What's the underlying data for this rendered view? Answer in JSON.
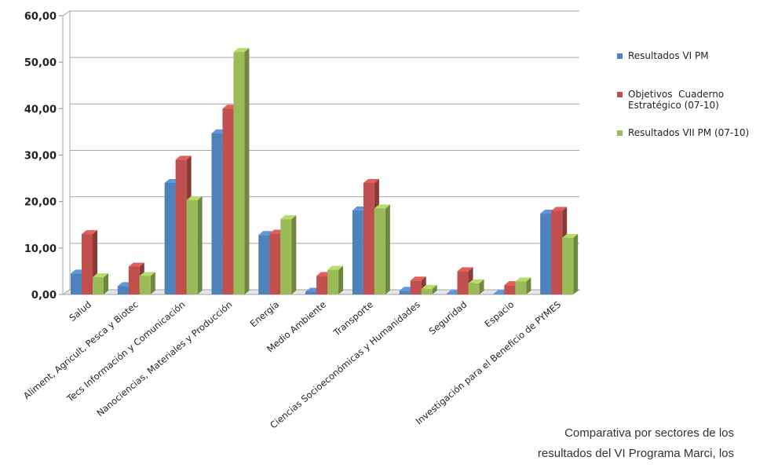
{
  "chart_data": {
    "type": "bar",
    "style": "3d-clustered-column",
    "categories": [
      "Salud",
      "Aliment, Agricult, Pesca y Biotec",
      "Tecs Información y Comunicación",
      "Nanociencias, Materiales y Producción",
      "Energía",
      "Medio Ambiente",
      "Transporte",
      "Ciencias Socioeconómicas y Humanidades",
      "Seguridad",
      "Espacio",
      "Investigación para el Beneficio de PYMES"
    ],
    "series": [
      {
        "name": "Resultados VI PM",
        "color": "#4F81BD",
        "values": [
          4.5,
          1.8,
          24.0,
          34.7,
          12.8,
          0.6,
          18.1,
          0.8,
          0.1,
          0.1,
          17.4
        ]
      },
      {
        "name": "Objetivos  Cuaderno Estratégico (07-10)",
        "color": "#C0504D",
        "values": [
          13.0,
          6.0,
          29.0,
          40.0,
          13.1,
          4.0,
          24.0,
          3.0,
          5.0,
          2.0,
          18.0
        ]
      },
      {
        "name": "Resultados VII PM (07-10)",
        "color": "#9BBB59",
        "values": [
          3.7,
          4.0,
          20.3,
          52.2,
          16.2,
          5.3,
          18.5,
          1.2,
          2.4,
          2.8,
          12.2
        ]
      }
    ],
    "y_ticks": [
      "0,00",
      "10,00",
      "20,00",
      "30,00",
      "40,00",
      "50,00",
      "60,00"
    ],
    "ylim": [
      0,
      60
    ],
    "grid": true,
    "legend_position": "right",
    "title": "",
    "xlabel": "",
    "ylabel": ""
  },
  "caption": {
    "line1": "Comparativa por sectores de los",
    "line2": "resultados del VI Programa Marci, los"
  }
}
